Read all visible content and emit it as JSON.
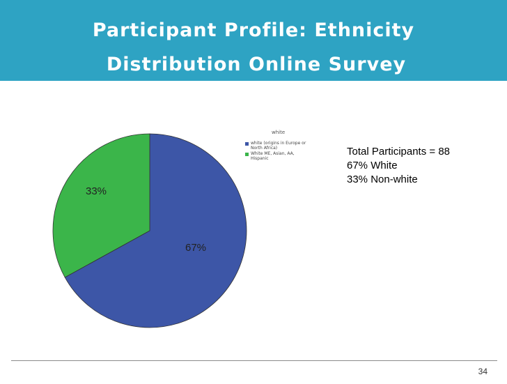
{
  "slide": {
    "title_line1": "Participant Profile: Ethnicity",
    "title_line2": "Distribution Online Survey",
    "page_number": "34",
    "header_color": "#2ea3c3"
  },
  "stats": {
    "total": "Total Participants = 88",
    "white": "67% White",
    "nonwhite": "33% Non-white"
  },
  "chart_data": {
    "type": "pie",
    "legend_title": "white",
    "legend_position": "top-right",
    "slices": [
      {
        "label": "white (origins in Europe or North Africa)",
        "value": 67,
        "display": "67%",
        "color": "#3d56a7"
      },
      {
        "label": "White ME, Asian, AA, Hispanic",
        "value": 33,
        "display": "33%",
        "color": "#3bb54a"
      }
    ]
  }
}
